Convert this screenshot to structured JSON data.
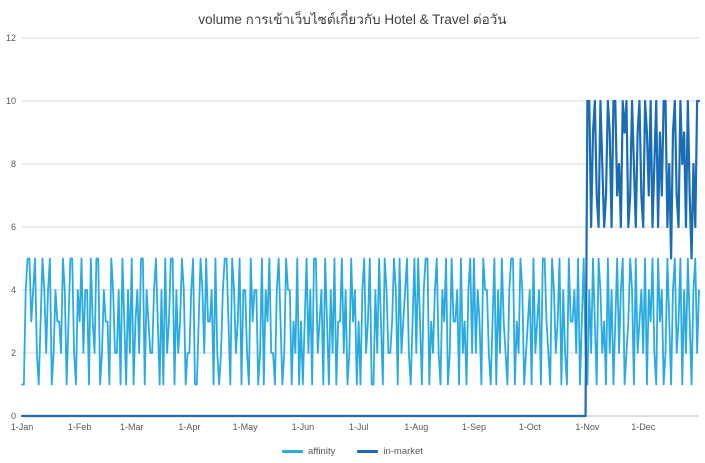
{
  "chart_data": {
    "type": "line",
    "title": "volume การเข้าเว็บไซต์เกี่ยวกับ Hotel & Travel ต่อวัน",
    "xlabel": "",
    "ylabel": "",
    "grid": "horizontal",
    "x_axis": {
      "kind": "daily-dates-one-year",
      "days_total": 365,
      "tick_labels": [
        "1-Jan",
        "1-Feb",
        "1-Mar",
        "1-Apr",
        "1-May",
        "1-Jun",
        "1-Jul",
        "1-Aug",
        "1-Sep",
        "1-Oct",
        "1-Nov",
        "1-Dec"
      ],
      "tick_day_index": [
        0,
        31,
        59,
        90,
        120,
        151,
        181,
        212,
        243,
        273,
        304,
        334
      ]
    },
    "y_axis": {
      "min": 0,
      "max": 12,
      "tick_step": 2,
      "tick_labels": [
        "0",
        "2",
        "4",
        "6",
        "8",
        "10",
        "12"
      ]
    },
    "legend": {
      "position": "bottom",
      "entries": [
        {
          "label": "affinity",
          "color": "#29ABE2"
        },
        {
          "label": "in-market",
          "color": "#1A6CB4"
        }
      ]
    },
    "series": [
      {
        "name": "affinity",
        "color": "#29ABE2",
        "stroke_width": 1.8,
        "values_by_month": [
          [
            1,
            1,
            4,
            5,
            5,
            3,
            4,
            5,
            2,
            1,
            3,
            5,
            4,
            2,
            4,
            5,
            1,
            2,
            4,
            3,
            3,
            2,
            5,
            4,
            1,
            3,
            5,
            5,
            2,
            1,
            4
          ],
          [
            3,
            5,
            2,
            4,
            4,
            1,
            5,
            3,
            2,
            5,
            5,
            1,
            2,
            4,
            3,
            3,
            1,
            5,
            4,
            2,
            2,
            4,
            1,
            5,
            3,
            1,
            4,
            2
          ],
          [
            5,
            1,
            3,
            4,
            2,
            5,
            5,
            1,
            4,
            3,
            2,
            2,
            4,
            5,
            3,
            1,
            4,
            1,
            5,
            2,
            3,
            5,
            5,
            1,
            4,
            2,
            3,
            5,
            4,
            1,
            2
          ],
          [
            2,
            4,
            5,
            1,
            1,
            3,
            5,
            4,
            2,
            5,
            3,
            3,
            4,
            1,
            5,
            2,
            1,
            2,
            4,
            5,
            5,
            3,
            1,
            5,
            4,
            2,
            3,
            5,
            1,
            4
          ],
          [
            4,
            2,
            1,
            5,
            3,
            4,
            4,
            1,
            2,
            5,
            1,
            4,
            3,
            5,
            2,
            2,
            1,
            4,
            5,
            3,
            1,
            2,
            5,
            4,
            4,
            1,
            3,
            2,
            5,
            1,
            3
          ],
          [
            1,
            3,
            5,
            2,
            4,
            1,
            5,
            5,
            2,
            3,
            4,
            1,
            5,
            3,
            1,
            4,
            2,
            5,
            1,
            3,
            3,
            5,
            2,
            4,
            1,
            2,
            5,
            3,
            4,
            1
          ],
          [
            3,
            1,
            4,
            5,
            2,
            3,
            5,
            1,
            1,
            4,
            2,
            5,
            3,
            1,
            5,
            4,
            2,
            2,
            3,
            5,
            4,
            1,
            5,
            2,
            3,
            4,
            5,
            2,
            1,
            3,
            5
          ],
          [
            2,
            5,
            3,
            1,
            4,
            5,
            5,
            1,
            3,
            2,
            4,
            5,
            2,
            1,
            4,
            3,
            5,
            1,
            2,
            5,
            3,
            3,
            4,
            1,
            5,
            2,
            3,
            1,
            4,
            5,
            2
          ],
          [
            5,
            2,
            4,
            3,
            1,
            5,
            4,
            4,
            2,
            1,
            3,
            5,
            1,
            4,
            2,
            5,
            3,
            2,
            1,
            4,
            5,
            5,
            1,
            3,
            2,
            5,
            4,
            1,
            2,
            3
          ],
          [
            4,
            1,
            5,
            2,
            3,
            4,
            1,
            5,
            5,
            3,
            2,
            1,
            5,
            4,
            2,
            3,
            5,
            1,
            4,
            2,
            1,
            5,
            3,
            3,
            4,
            2,
            5,
            1,
            3,
            5,
            2
          ],
          [
            1,
            4,
            2,
            5,
            3,
            1,
            5,
            4,
            2,
            3,
            1,
            5,
            2,
            4,
            1,
            3,
            5,
            2,
            4,
            5,
            1,
            2,
            3,
            5,
            4,
            1,
            5,
            2,
            3,
            4
          ],
          [
            2,
            5,
            1,
            4,
            3,
            5,
            2,
            1,
            5,
            3,
            4,
            1,
            2,
            5,
            3,
            1,
            4,
            5,
            2,
            3,
            5,
            1,
            4,
            2,
            5,
            3,
            1,
            4,
            5,
            2,
            4
          ]
        ]
      },
      {
        "name": "in-market",
        "color": "#1A6CB4",
        "stroke_width": 2.2,
        "leading_zeros": 304,
        "values_by_month_from_nov": [
          [
            10,
            10,
            6,
            9,
            10,
            7,
            6,
            10,
            8,
            6,
            7,
            10,
            9,
            6,
            10,
            10,
            7,
            8,
            6,
            10,
            9,
            10,
            6,
            7,
            10,
            8,
            6,
            9,
            10,
            7
          ],
          [
            6,
            10,
            9,
            7,
            10,
            6,
            8,
            10,
            6,
            9,
            7,
            10,
            10,
            6,
            8,
            5,
            9,
            10,
            7,
            6,
            10,
            8,
            9,
            6,
            10,
            7,
            5,
            8,
            6,
            10,
            10
          ]
        ]
      }
    ],
    "colors": {
      "grid": "#D9D9D9",
      "axis_line": "#BFBFBF",
      "tick_text": "#595959",
      "title_text": "#404040",
      "background": "#FFFFFF"
    }
  }
}
